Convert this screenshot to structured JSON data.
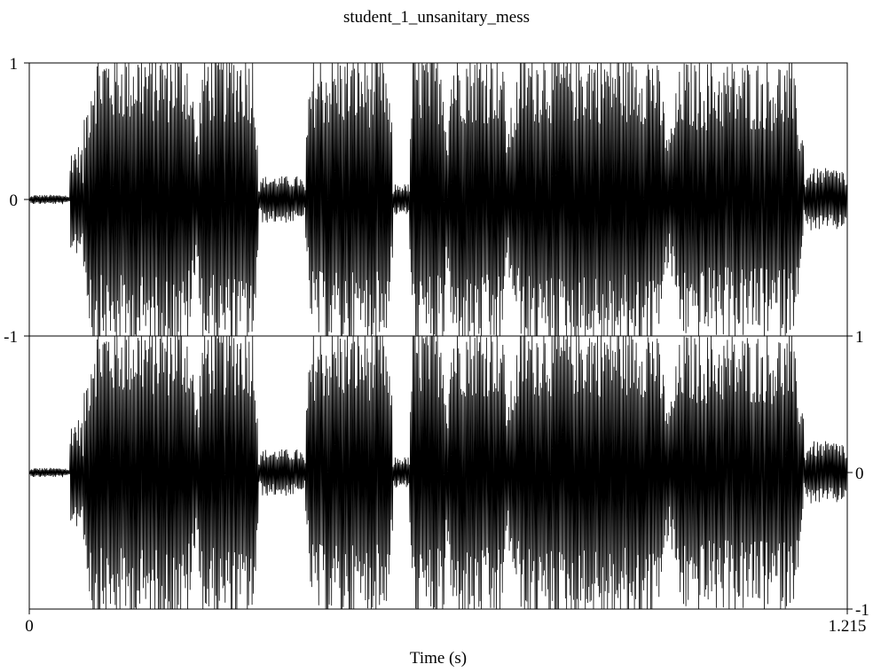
{
  "chart_data": {
    "type": "line",
    "title": "student_1_unsanitary_mess",
    "xlabel": "Time (s)",
    "xlim": [
      0,
      1.215
    ],
    "x_ticks": [
      "0",
      "1.215"
    ],
    "channels": [
      {
        "name": "",
        "ylim": [
          -1,
          1
        ],
        "y_tick_labels": {
          "top": "1",
          "zero": "0",
          "bottom": "-1"
        },
        "tick_side": "left"
      },
      {
        "name": "",
        "ylim": [
          -1,
          1
        ],
        "y_tick_labels": {
          "top": "1",
          "zero": "0",
          "bottom": "-1"
        },
        "tick_side": "right"
      }
    ],
    "segments": [
      {
        "t0": 0.0,
        "t1": 0.06,
        "amp": 0.03
      },
      {
        "t0": 0.06,
        "t1": 0.08,
        "amp": 0.35
      },
      {
        "t0": 0.08,
        "t1": 0.25,
        "amp": 1.0
      },
      {
        "t0": 0.25,
        "t1": 0.34,
        "amp": 1.0
      },
      {
        "t0": 0.34,
        "t1": 0.41,
        "amp": 0.15
      },
      {
        "t0": 0.41,
        "t1": 0.54,
        "amp": 0.95
      },
      {
        "t0": 0.54,
        "t1": 0.565,
        "amp": 0.1
      },
      {
        "t0": 0.565,
        "t1": 0.62,
        "amp": 1.0
      },
      {
        "t0": 0.62,
        "t1": 0.71,
        "amp": 1.0
      },
      {
        "t0": 0.71,
        "t1": 0.95,
        "amp": 1.0
      },
      {
        "t0": 0.95,
        "t1": 1.15,
        "amp": 0.9
      },
      {
        "t0": 1.15,
        "t1": 1.215,
        "amp": 0.2
      }
    ],
    "grid": false,
    "legend": "none"
  }
}
